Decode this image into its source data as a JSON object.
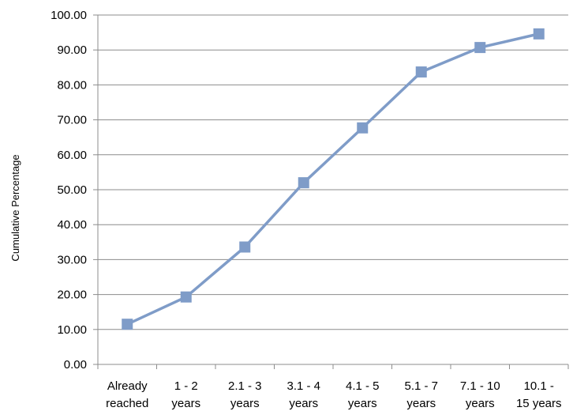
{
  "chart_data": {
    "type": "line",
    "title": "",
    "xlabel": "",
    "ylabel": "Cumulative Percentage",
    "categories": [
      [
        "Already",
        "reached"
      ],
      [
        "1 - 2",
        "years"
      ],
      [
        "2.1 - 3",
        "years"
      ],
      [
        "3.1 - 4",
        "years"
      ],
      [
        "4.1 - 5",
        "years"
      ],
      [
        "5.1 - 7",
        "years"
      ],
      [
        "7.1 - 10",
        "years"
      ],
      [
        "10.1 -",
        "15 years"
      ]
    ],
    "series": [
      {
        "values": [
          11.5,
          19.3,
          33.6,
          52.0,
          67.7,
          83.7,
          90.7,
          94.6
        ]
      }
    ],
    "yticks": [
      "0.00",
      "10.00",
      "20.00",
      "30.00",
      "40.00",
      "50.00",
      "60.00",
      "70.00",
      "80.00",
      "90.00",
      "100.00"
    ],
    "ylim": [
      0,
      100
    ],
    "grid": true,
    "legend": "none",
    "line_color": "#7f9cc8",
    "marker_color": "#7f9cc8",
    "grid_color": "#8c8c8c"
  }
}
